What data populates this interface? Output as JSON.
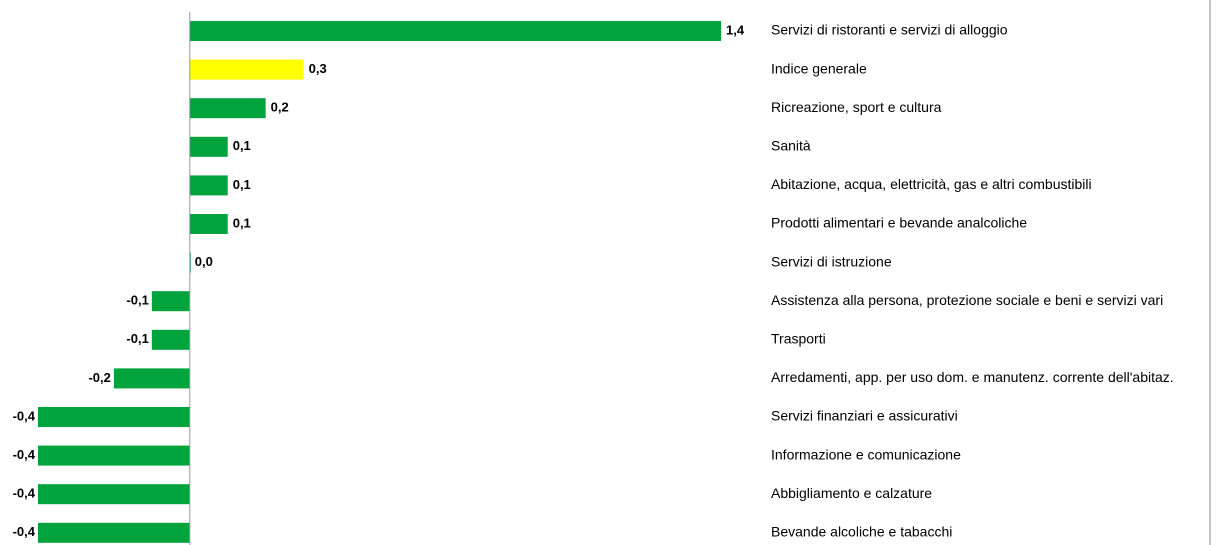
{
  "chart_data": {
    "type": "bar",
    "orientation": "horizontal",
    "categories": [
      "Servizi di ristoranti e servizi di alloggio",
      "Indice generale",
      "Ricreazione, sport e cultura",
      "Sanità",
      "Abitazione, acqua, elettricità, gas e altri combustibili",
      "Prodotti alimentari e bevande analcoliche",
      "Servizi di istruzione",
      "Assistenza alla persona, protezione sociale e beni e servizi vari",
      "Trasporti",
      "Arredamenti, app. per uso dom. e manutenz. corrente dell'abitaz.",
      "Servizi finanziari e assicurativi",
      "Informazione e comunicazione",
      "Abbigliamento e calzature",
      "Bevande alcoliche e tabacchi"
    ],
    "values": [
      1.4,
      0.3,
      0.2,
      0.1,
      0.1,
      0.1,
      0,
      -0.1,
      -0.1,
      -0.2,
      -0.4,
      -0.4,
      -0.4,
      -0.4
    ],
    "value_labels": [
      "1,4",
      "0,3",
      "0,2",
      "0,1",
      "0,1",
      "0,1",
      "0,0",
      "-0,1",
      "-0,1",
      "-0,2",
      "-0,4",
      "-0,4",
      "-0,4",
      "-0,4"
    ],
    "colors": [
      "#00a33c",
      "#ffff00",
      "#00a33c",
      "#00a33c",
      "#00a33c",
      "#00a33c",
      "#00a33c",
      "#00a33c",
      "#00a33c",
      "#00a33c",
      "#00a33c",
      "#00a33c",
      "#00a33c",
      "#00a33c"
    ],
    "xlim": [
      -0.4,
      1.4
    ]
  }
}
